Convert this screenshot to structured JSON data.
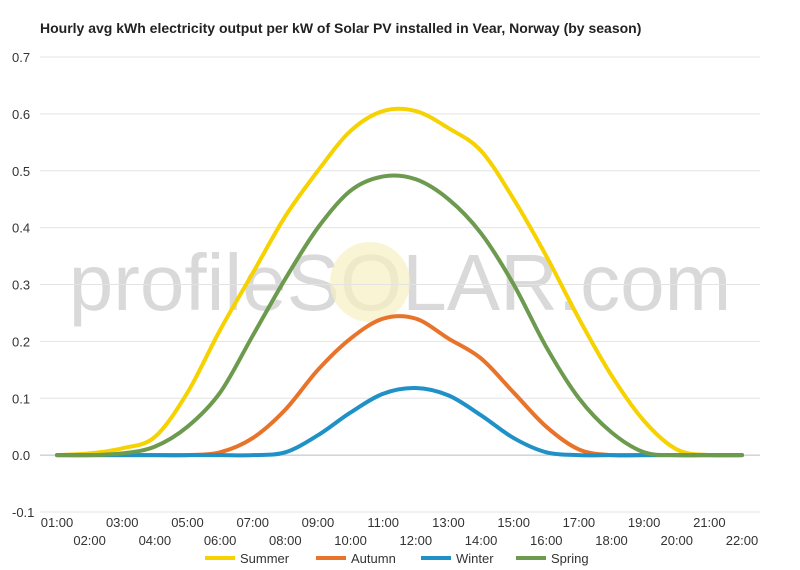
{
  "chart_data": {
    "type": "line",
    "title": "Hourly avg kWh electricity output per kW of Solar PV installed in Vear, Norway (by season)",
    "xlabel": "",
    "ylabel": "",
    "ylim": [
      -0.1,
      0.7
    ],
    "yticks": [
      "-0.1",
      "0.0",
      "0.1",
      "0.2",
      "0.3",
      "0.4",
      "0.5",
      "0.6",
      "0.7"
    ],
    "categories": [
      "01:00",
      "02:00",
      "03:00",
      "04:00",
      "05:00",
      "06:00",
      "07:00",
      "08:00",
      "09:00",
      "10:00",
      "11:00",
      "12:00",
      "13:00",
      "14:00",
      "15:00",
      "16:00",
      "17:00",
      "18:00",
      "19:00",
      "20:00",
      "21:00",
      "22:00"
    ],
    "grid": true,
    "legend_position": "bottom",
    "watermark": "profileSOLAR.com",
    "series": [
      {
        "name": "Summer",
        "color": "#f5d200",
        "values": [
          0.0,
          0.003,
          0.012,
          0.032,
          0.11,
          0.22,
          0.32,
          0.42,
          0.5,
          0.57,
          0.605,
          0.605,
          0.575,
          0.535,
          0.45,
          0.35,
          0.24,
          0.14,
          0.06,
          0.01,
          0.0,
          0.0
        ]
      },
      {
        "name": "Autumn",
        "color": "#e8732a",
        "values": [
          0.0,
          0.0,
          0.0,
          0.0,
          0.0,
          0.005,
          0.03,
          0.08,
          0.15,
          0.205,
          0.24,
          0.24,
          0.205,
          0.17,
          0.11,
          0.05,
          0.01,
          0.0,
          0.0,
          0.0,
          0.0,
          0.0
        ]
      },
      {
        "name": "Winter",
        "color": "#1f91c7",
        "values": [
          0.0,
          0.0,
          0.0,
          0.0,
          0.0,
          0.0,
          0.0,
          0.005,
          0.035,
          0.075,
          0.108,
          0.118,
          0.105,
          0.07,
          0.03,
          0.005,
          0.0,
          0.0,
          0.0,
          0.0,
          0.0,
          0.0
        ]
      },
      {
        "name": "Spring",
        "color": "#6c9a4e",
        "values": [
          0.0,
          0.0,
          0.003,
          0.015,
          0.05,
          0.11,
          0.21,
          0.31,
          0.4,
          0.465,
          0.49,
          0.485,
          0.45,
          0.39,
          0.3,
          0.19,
          0.1,
          0.04,
          0.005,
          0.0,
          0.0,
          0.0
        ]
      }
    ]
  }
}
